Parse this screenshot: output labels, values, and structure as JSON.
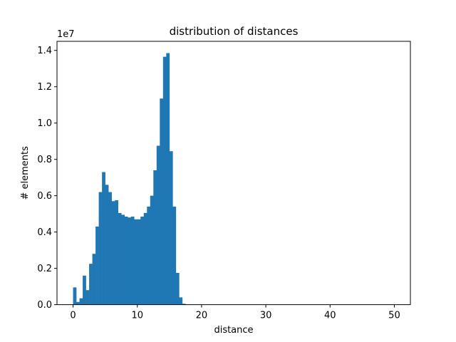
{
  "chart_data": {
    "type": "bar",
    "title": "distribution of distances",
    "xlabel": "distance",
    "ylabel": "# elements",
    "y_offset_text": "1e7",
    "xlim": [
      -2.5,
      52.5
    ],
    "ylim": [
      0,
      14500000
    ],
    "xticks": [
      0,
      10,
      20,
      30,
      40,
      50
    ],
    "xtick_labels": [
      "0",
      "10",
      "20",
      "30",
      "40",
      "50"
    ],
    "yticks": [
      0,
      2000000,
      4000000,
      6000000,
      8000000,
      10000000,
      12000000,
      14000000
    ],
    "ytick_labels": [
      "0.0",
      "0.2",
      "0.4",
      "0.6",
      "0.8",
      "1.0",
      "1.2",
      "1.4"
    ],
    "bin_width": 0.5,
    "bin_starts": [
      0,
      0.5,
      1,
      1.5,
      2,
      2.5,
      3,
      3.5,
      4,
      4.5,
      5,
      5.5,
      6,
      6.5,
      7,
      7.5,
      8,
      8.5,
      9,
      9.5,
      10,
      10.5,
      11,
      11.5,
      12,
      12.5,
      13,
      13.5,
      14,
      14.5,
      15,
      15.5,
      16,
      16.5,
      17
    ],
    "values": [
      950000,
      150000,
      350000,
      1600000,
      800000,
      2250000,
      2800000,
      4300000,
      6200000,
      7300000,
      6600000,
      6200000,
      5700000,
      5750000,
      5050000,
      4950000,
      4850000,
      4800000,
      4850000,
      4700000,
      4700000,
      4850000,
      5050000,
      5400000,
      6000000,
      7400000,
      8750000,
      11350000,
      13650000,
      13850000,
      8450000,
      5400000,
      1750000,
      400000,
      50000
    ],
    "bar_color": "#1f77b4",
    "grid": false
  }
}
